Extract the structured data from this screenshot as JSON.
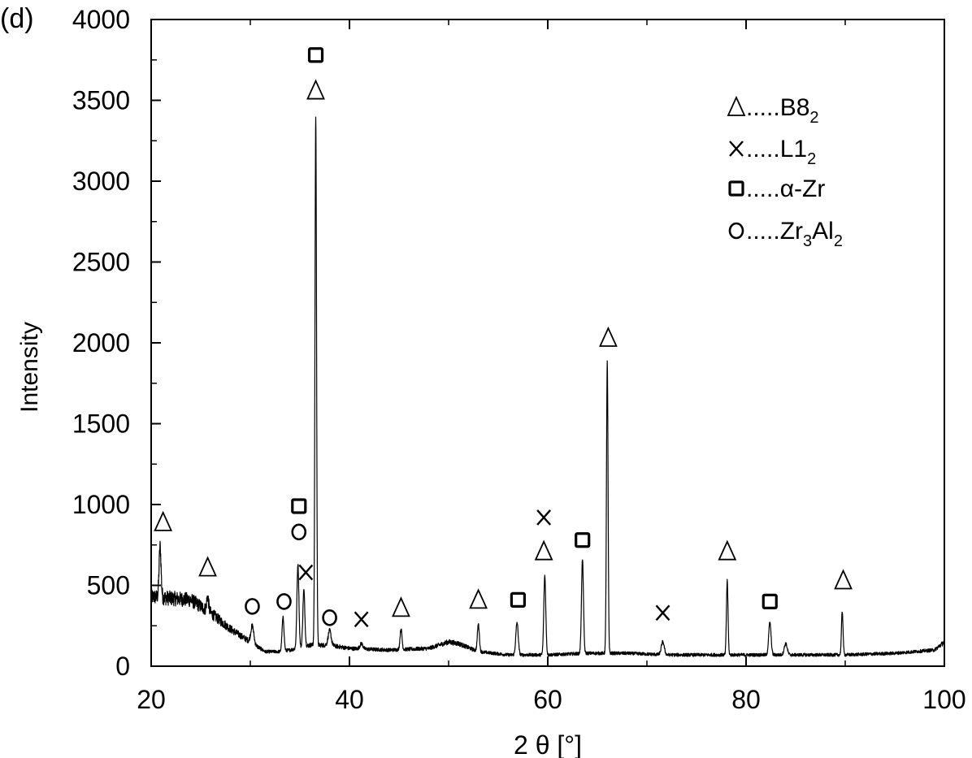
{
  "chart_data": {
    "type": "line",
    "panel_label": "(d)",
    "title": "",
    "xlabel": "2 θ [°]",
    "ylabel": "Intensity",
    "xlim": [
      20,
      100
    ],
    "ylim": [
      0,
      4000
    ],
    "xticks": [
      20,
      40,
      60,
      80,
      100
    ],
    "yticks": [
      0,
      500,
      1000,
      1500,
      2000,
      2500,
      3000,
      3500,
      4000
    ],
    "grid": false,
    "line_color": "#000000",
    "legend": {
      "placement": "top-right",
      "entries": [
        {
          "symbol": "triangle",
          "dots": ".....",
          "phase": "B8",
          "sub": "2"
        },
        {
          "symbol": "x",
          "dots": ".....",
          "phase": "L1",
          "sub": "2"
        },
        {
          "symbol": "square",
          "dots": ".....",
          "phase": "α-Zr",
          "sub": ""
        },
        {
          "symbol": "circle",
          "dots": ".....",
          "phase_parts": [
            [
              "Zr",
              ""
            ],
            [
              "3",
              "sub"
            ],
            [
              "Al",
              ""
            ],
            [
              "2",
              "sub"
            ]
          ]
        }
      ]
    },
    "baseline": [
      [
        20,
        430
      ],
      [
        22,
        420
      ],
      [
        24,
        410
      ],
      [
        26,
        330
      ],
      [
        28,
        230
      ],
      [
        30,
        150
      ],
      [
        31.5,
        90
      ],
      [
        33,
        90
      ],
      [
        34,
        100
      ],
      [
        36,
        130
      ],
      [
        38,
        130
      ],
      [
        40,
        110
      ],
      [
        44,
        100
      ],
      [
        48,
        110
      ],
      [
        50,
        150
      ],
      [
        51,
        140
      ],
      [
        53,
        90
      ],
      [
        56,
        70
      ],
      [
        60,
        70
      ],
      [
        64,
        80
      ],
      [
        68,
        80
      ],
      [
        72,
        70
      ],
      [
        76,
        70
      ],
      [
        80,
        70
      ],
      [
        85,
        70
      ],
      [
        90,
        70
      ],
      [
        95,
        80
      ],
      [
        99,
        100
      ],
      [
        100,
        150
      ]
    ],
    "peaks": [
      {
        "x": 20.9,
        "height": 740,
        "width": 0.1
      },
      {
        "x": 25.7,
        "height": 430,
        "width": 0.1
      },
      {
        "x": 30.2,
        "height": 250,
        "width": 0.15
      },
      {
        "x": 33.3,
        "height": 300,
        "width": 0.1
      },
      {
        "x": 34.8,
        "height": 630,
        "width": 0.1
      },
      {
        "x": 35.4,
        "height": 470,
        "width": 0.1
      },
      {
        "x": 36.6,
        "height": 3400,
        "width": 0.08
      },
      {
        "x": 38.0,
        "height": 220,
        "width": 0.15
      },
      {
        "x": 41.2,
        "height": 140,
        "width": 0.15
      },
      {
        "x": 45.2,
        "height": 230,
        "width": 0.1
      },
      {
        "x": 53.0,
        "height": 260,
        "width": 0.1
      },
      {
        "x": 56.9,
        "height": 270,
        "width": 0.12
      },
      {
        "x": 59.7,
        "height": 560,
        "width": 0.1
      },
      {
        "x": 63.5,
        "height": 660,
        "width": 0.1
      },
      {
        "x": 66.0,
        "height": 1880,
        "width": 0.08
      },
      {
        "x": 71.6,
        "height": 150,
        "width": 0.15
      },
      {
        "x": 78.1,
        "height": 530,
        "width": 0.08
      },
      {
        "x": 82.4,
        "height": 270,
        "width": 0.12
      },
      {
        "x": 84.0,
        "height": 140,
        "width": 0.15
      },
      {
        "x": 89.7,
        "height": 340,
        "width": 0.08
      }
    ],
    "annotations": [
      {
        "symbol": "square",
        "x": 36.6,
        "y": 3780
      },
      {
        "symbol": "triangle",
        "x": 36.6,
        "y": 3560
      },
      {
        "symbol": "triangle",
        "x": 21.2,
        "y": 890
      },
      {
        "symbol": "triangle",
        "x": 25.7,
        "y": 610
      },
      {
        "symbol": "circle",
        "x": 30.2,
        "y": 370
      },
      {
        "symbol": "circle",
        "x": 33.4,
        "y": 400
      },
      {
        "symbol": "square",
        "x": 34.9,
        "y": 990
      },
      {
        "symbol": "circle",
        "x": 34.9,
        "y": 830
      },
      {
        "symbol": "x",
        "x": 35.6,
        "y": 580
      },
      {
        "symbol": "circle",
        "x": 38.0,
        "y": 300
      },
      {
        "symbol": "x",
        "x": 41.2,
        "y": 290
      },
      {
        "symbol": "triangle",
        "x": 45.2,
        "y": 360
      },
      {
        "symbol": "triangle",
        "x": 53.0,
        "y": 410
      },
      {
        "symbol": "square",
        "x": 57.0,
        "y": 410
      },
      {
        "symbol": "x",
        "x": 59.6,
        "y": 920
      },
      {
        "symbol": "triangle",
        "x": 59.6,
        "y": 710
      },
      {
        "symbol": "square",
        "x": 63.5,
        "y": 780
      },
      {
        "symbol": "triangle",
        "x": 66.1,
        "y": 2030
      },
      {
        "symbol": "x",
        "x": 71.6,
        "y": 330
      },
      {
        "symbol": "triangle",
        "x": 78.1,
        "y": 710
      },
      {
        "symbol": "square",
        "x": 82.4,
        "y": 400
      },
      {
        "symbol": "triangle",
        "x": 89.8,
        "y": 530
      }
    ]
  }
}
